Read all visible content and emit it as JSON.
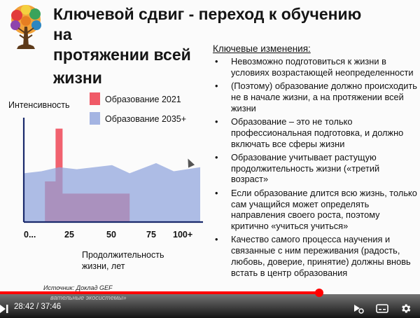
{
  "slide": {
    "title": "Ключевой сдвиг - переход к обучению на протяжении всей жизни",
    "key_changes_title": "Ключевые изменения:",
    "bullet_glyph": "•",
    "bullets": [
      "Невозможно подготовиться к жизни в условиях возрастающей неопределенности",
      "(Поэтому) образование должно происходить не в начале жизни, а на протяжении всей жизни",
      "Образование – это не только профессиональная подготовка, и должно включать все сферы жизни",
      "Образование учитывает растущую продолжительность жизни («третий возраст»",
      "Если образование длится всю жизнь, только сам учащийся может определять направления своего роста, поэтому критично «учиться учиться»",
      "Качество самого процесса научения и связанные с ним переживания (радость, любовь, доверие, принятие) должны вновь встать в центр образования"
    ],
    "source_line1": "Источник: Доклад GEF",
    "source_line2": "вательные экосистемы»"
  },
  "chart_data": {
    "type": "area",
    "ylabel": "Интенсивность",
    "xlabel": "Продолжительность жизни, лет",
    "x_ticks": [
      "0...",
      "25",
      "50",
      "75",
      "100+"
    ],
    "series": [
      {
        "name": "Образование 2021",
        "color": "#f05a67",
        "points": [
          [
            0,
            0
          ],
          [
            12,
            0
          ],
          [
            12,
            1.0
          ],
          [
            18,
            1.0
          ],
          [
            18,
            2.3
          ],
          [
            22,
            2.3
          ],
          [
            22,
            0.7
          ],
          [
            60,
            0.7
          ],
          [
            60,
            0
          ]
        ]
      },
      {
        "name": "Образование 2035+",
        "color": "#8fa3dc",
        "points": [
          [
            0,
            1.2
          ],
          [
            10,
            1.25
          ],
          [
            20,
            1.35
          ],
          [
            30,
            1.3
          ],
          [
            50,
            1.4
          ],
          [
            60,
            1.2
          ],
          [
            75,
            1.45
          ],
          [
            85,
            1.25
          ],
          [
            100,
            1.35
          ],
          [
            100,
            0
          ],
          [
            0,
            0
          ]
        ]
      }
    ],
    "xlim": [
      0,
      100
    ],
    "ylim": [
      0,
      2.5
    ],
    "legend_position": "top-right"
  },
  "player": {
    "time_current": "28:42",
    "time_separator": " / ",
    "time_total": "37:46",
    "progress": 0.76,
    "accent": "#ff0000"
  }
}
